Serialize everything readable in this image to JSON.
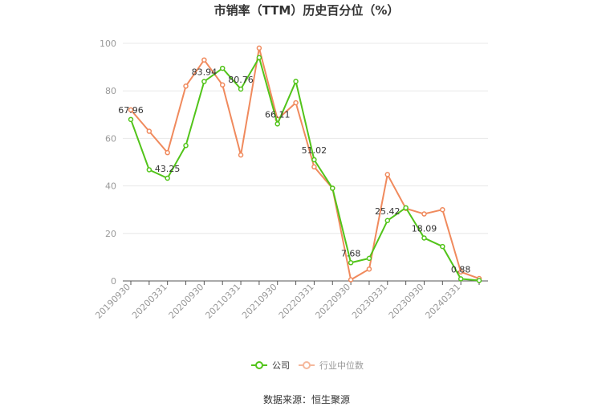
{
  "chart_data": {
    "type": "line",
    "title": "市销率（TTM）历史百分位（%）",
    "xlabel": "",
    "ylabel": "",
    "ylim": [
      0,
      100
    ],
    "yticks": [
      0,
      20,
      40,
      60,
      80,
      100
    ],
    "x": [
      "20190930",
      "20191231",
      "20200331",
      "20200630",
      "20200930",
      "20201231",
      "20210331",
      "20210630",
      "20210930",
      "20211231",
      "20220331",
      "20220630",
      "20220930",
      "20221231",
      "20230331",
      "20230630",
      "20230930",
      "20231231",
      "20240331",
      "20240630"
    ],
    "xtick_labels": [
      "20190930",
      "20200331",
      "20200930",
      "20210331",
      "20210930",
      "20220331",
      "20220930",
      "20230331",
      "20230930",
      "20240331"
    ],
    "series": [
      {
        "name": "公司",
        "color": "#52c41a",
        "values": [
          67.96,
          46.8,
          43.25,
          57.0,
          83.94,
          89.5,
          80.76,
          94.0,
          66.11,
          84.0,
          51.02,
          39.0,
          7.68,
          9.5,
          25.42,
          30.8,
          18.09,
          14.5,
          0.88,
          0.2
        ],
        "labels": {
          "0": "67.96",
          "2": "43.25",
          "4": "83.94",
          "6": "80.76",
          "8": "66.11",
          "10": "51.02",
          "12": "7.68",
          "14": "25.42",
          "16": "18.09",
          "18": "0.88"
        }
      },
      {
        "name": "行业中位数",
        "color": "#f08a5d",
        "values": [
          72.0,
          63.0,
          54.0,
          82.0,
          93.0,
          82.5,
          53.0,
          98.0,
          68.0,
          75.0,
          48.0,
          39.0,
          0.5,
          5.0,
          44.8,
          30.5,
          28.2,
          30.0,
          3.8,
          1.0
        ]
      }
    ],
    "grid": true,
    "legend_position": "bottom"
  },
  "source_text": "数据来源：恒生聚源"
}
